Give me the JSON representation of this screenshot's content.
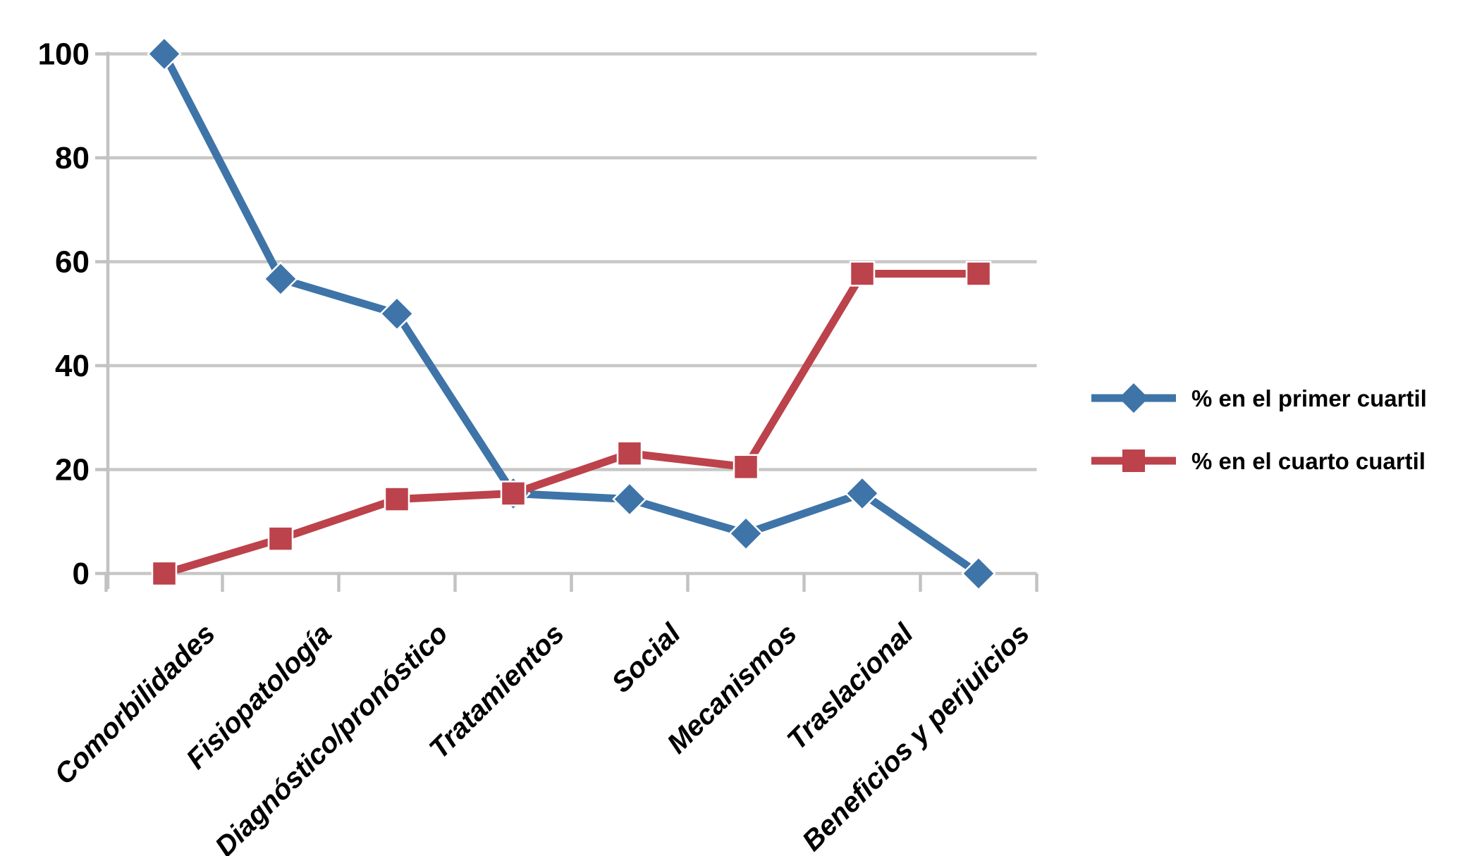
{
  "chart_data": {
    "type": "line",
    "title": "",
    "xlabel": "",
    "ylabel": "",
    "categories": [
      "Comorbilidades",
      "Fisiopatología",
      "Diagnóstico/pronóstico",
      "Tratamientos",
      "Social",
      "Mecanismos",
      "Traslacional",
      "Beneficios y perjuicios"
    ],
    "series": [
      {
        "name": "% en el primer cuartil",
        "marker": "diamond",
        "color": "#3E74A8",
        "values": [
          100,
          56.7,
          50,
          15.4,
          14.3,
          7.7,
          15.4,
          0
        ]
      },
      {
        "name": "% en el cuarto cuartil",
        "marker": "square",
        "color": "#BC424B",
        "values": [
          0,
          6.7,
          14.3,
          15.4,
          23.1,
          20.5,
          57.7,
          57.7
        ]
      }
    ],
    "ylim": [
      0,
      100
    ],
    "yticks": [
      0,
      20,
      40,
      60,
      80,
      100
    ],
    "grid": true,
    "legend_position": "right",
    "grid_color": "#C7C7C7",
    "axis_color": "#C2C2C2",
    "label_color": "#000000",
    "background": "#FFFFFF"
  }
}
